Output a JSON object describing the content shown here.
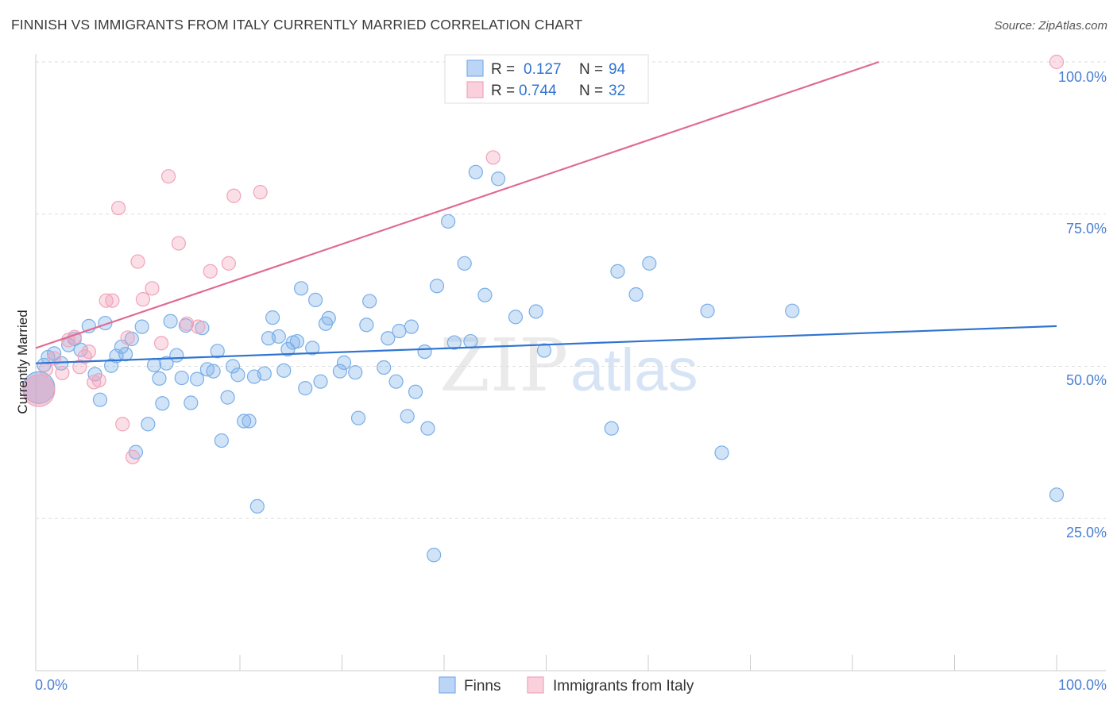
{
  "header": {
    "title": "FINNISH VS IMMIGRANTS FROM ITALY CURRENTLY MARRIED CORRELATION CHART",
    "source": "Source: ZipAtlas.com"
  },
  "watermark": {
    "zip": "ZIP",
    "atlas": "atlas"
  },
  "colors": {
    "finns": "#7aaee8",
    "finns_line": "#2f74d0",
    "italy": "#f1a3bb",
    "italy_line": "#e06a93",
    "axis_label": "#4a7fd4",
    "grid": "#dddddd"
  },
  "chart_data": {
    "type": "scatter",
    "title": "FINNISH VS IMMIGRANTS FROM ITALY CURRENTLY MARRIED CORRELATION CHART",
    "xlabel": "",
    "ylabel": "Currently Married",
    "xlim": [
      0,
      100
    ],
    "ylim": [
      0,
      100
    ],
    "x_tick_labels": [
      "0.0%",
      "100.0%"
    ],
    "y_ticks": [
      {
        "value": 100,
        "label": "100.0%"
      },
      {
        "value": 75,
        "label": "75.0%"
      },
      {
        "value": 50,
        "label": "50.0%"
      },
      {
        "value": 25,
        "label": "25.0%"
      }
    ],
    "legend": [
      {
        "r_label": "R =",
        "r_value": "0.127",
        "n_label": "N =",
        "n_value": "94"
      },
      {
        "r_label": "R =",
        "r_value": "0.744",
        "n_label": "N =",
        "n_value": "32"
      }
    ],
    "series": [
      {
        "name": "Finns",
        "r": 0.127,
        "n": 94,
        "trend": [
          [
            0,
            50.5
          ],
          [
            100,
            56.6
          ]
        ],
        "points": [
          [
            0.3,
            46.5
          ],
          [
            0.8,
            50.2
          ],
          [
            1.2,
            51.5
          ],
          [
            1.8,
            52.1
          ],
          [
            2.5,
            50.5
          ],
          [
            3.2,
            53.5
          ],
          [
            3.8,
            54.5
          ],
          [
            4.4,
            52.7
          ],
          [
            5.2,
            56.6
          ],
          [
            5.8,
            48.7
          ],
          [
            6.3,
            44.5
          ],
          [
            6.8,
            57.1
          ],
          [
            7.4,
            50.1
          ],
          [
            7.9,
            51.7
          ],
          [
            8.4,
            53.2
          ],
          [
            8.8,
            52.0
          ],
          [
            9.4,
            54.5
          ],
          [
            9.8,
            35.9
          ],
          [
            10.4,
            56.5
          ],
          [
            11.0,
            40.5
          ],
          [
            11.6,
            50.2
          ],
          [
            12.1,
            48.0
          ],
          [
            12.4,
            43.9
          ],
          [
            12.8,
            50.5
          ],
          [
            13.2,
            57.4
          ],
          [
            13.8,
            51.8
          ],
          [
            14.3,
            48.1
          ],
          [
            14.7,
            56.7
          ],
          [
            15.2,
            44.0
          ],
          [
            15.8,
            47.9
          ],
          [
            16.3,
            56.3
          ],
          [
            16.8,
            49.5
          ],
          [
            17.4,
            49.2
          ],
          [
            17.8,
            52.5
          ],
          [
            18.2,
            37.8
          ],
          [
            18.8,
            44.9
          ],
          [
            19.3,
            50.0
          ],
          [
            19.8,
            48.6
          ],
          [
            20.4,
            41.0
          ],
          [
            20.9,
            41.0
          ],
          [
            21.4,
            48.3
          ],
          [
            21.7,
            27.0
          ],
          [
            22.4,
            48.8
          ],
          [
            22.8,
            54.6
          ],
          [
            23.2,
            58.0
          ],
          [
            23.8,
            54.9
          ],
          [
            24.3,
            49.3
          ],
          [
            24.7,
            52.8
          ],
          [
            25.2,
            53.9
          ],
          [
            25.6,
            54.1
          ],
          [
            26.0,
            62.8
          ],
          [
            26.4,
            46.4
          ],
          [
            27.1,
            53.0
          ],
          [
            27.4,
            60.9
          ],
          [
            27.9,
            47.5
          ],
          [
            28.4,
            57.0
          ],
          [
            28.7,
            57.9
          ],
          [
            29.8,
            49.2
          ],
          [
            30.2,
            50.6
          ],
          [
            31.3,
            49.0
          ],
          [
            31.6,
            41.5
          ],
          [
            32.4,
            56.8
          ],
          [
            32.7,
            60.7
          ],
          [
            34.1,
            49.8
          ],
          [
            34.5,
            54.6
          ],
          [
            35.3,
            47.5
          ],
          [
            35.6,
            55.8
          ],
          [
            36.4,
            41.8
          ],
          [
            36.8,
            56.5
          ],
          [
            37.2,
            45.8
          ],
          [
            38.1,
            52.4
          ],
          [
            38.4,
            39.8
          ],
          [
            39.0,
            19.0
          ],
          [
            39.3,
            63.2
          ],
          [
            40.4,
            73.8
          ],
          [
            41.0,
            53.9
          ],
          [
            42.0,
            66.9
          ],
          [
            42.6,
            54.1
          ],
          [
            43.1,
            81.9
          ],
          [
            44.0,
            61.7
          ],
          [
            45.3,
            80.8
          ],
          [
            47.0,
            58.1
          ],
          [
            49.0,
            59.0
          ],
          [
            49.8,
            52.6
          ],
          [
            56.4,
            39.8
          ],
          [
            57.0,
            65.6
          ],
          [
            58.8,
            61.8
          ],
          [
            60.1,
            66.9
          ],
          [
            65.8,
            59.1
          ],
          [
            67.2,
            35.8
          ],
          [
            74.1,
            59.1
          ],
          [
            100.0,
            28.9
          ]
        ]
      },
      {
        "name": "Immigrants from Italy",
        "r": 0.744,
        "n": 32,
        "trend": [
          [
            0,
            53.0
          ],
          [
            82.6,
            100.0
          ]
        ],
        "points": [
          [
            0.3,
            46.0
          ],
          [
            1.0,
            49.5
          ],
          [
            1.8,
            51.3
          ],
          [
            2.6,
            48.9
          ],
          [
            3.2,
            54.3
          ],
          [
            3.8,
            54.8
          ],
          [
            4.3,
            49.9
          ],
          [
            4.8,
            51.6
          ],
          [
            5.2,
            52.4
          ],
          [
            5.7,
            47.4
          ],
          [
            6.2,
            47.7
          ],
          [
            6.9,
            60.8
          ],
          [
            7.5,
            60.8
          ],
          [
            8.1,
            76.0
          ],
          [
            8.5,
            40.5
          ],
          [
            9.0,
            54.7
          ],
          [
            9.5,
            35.1
          ],
          [
            10.0,
            67.2
          ],
          [
            10.5,
            61.0
          ],
          [
            11.4,
            62.8
          ],
          [
            12.3,
            53.8
          ],
          [
            13.0,
            81.2
          ],
          [
            14.0,
            70.2
          ],
          [
            14.8,
            57.0
          ],
          [
            15.9,
            56.5
          ],
          [
            17.1,
            65.6
          ],
          [
            18.9,
            66.9
          ],
          [
            19.4,
            78.0
          ],
          [
            22.0,
            78.6
          ],
          [
            44.8,
            84.3
          ],
          [
            100.0,
            100.0
          ]
        ]
      }
    ]
  }
}
